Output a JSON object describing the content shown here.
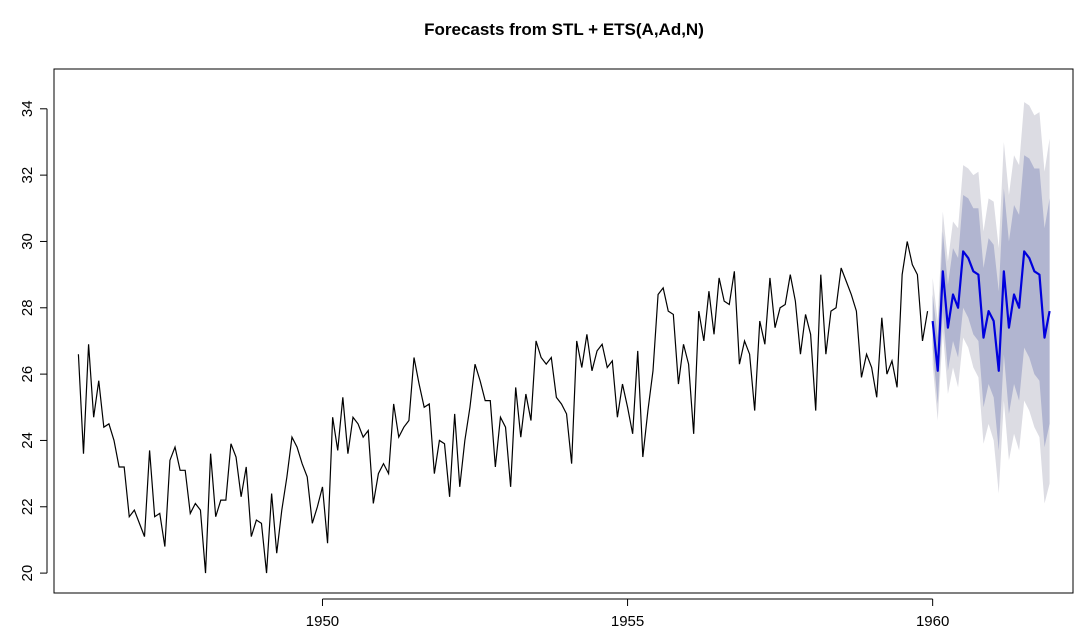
{
  "chart_data": {
    "type": "line",
    "title": "Forecasts from STL +  ETS(A,Ad,N)",
    "xlabel": "",
    "ylabel": "",
    "xlim": [
      1945.6,
      1962.3
    ],
    "ylim": [
      19.4,
      35.2
    ],
    "x_ticks": [
      1950,
      1955,
      1960
    ],
    "y_ticks": [
      20,
      22,
      24,
      26,
      28,
      30,
      32,
      34
    ],
    "grid": false,
    "colors": {
      "history": "#000000",
      "forecast": "#0000dd",
      "band80": "#b1b5d0",
      "band95": "#dcdce3"
    },
    "history": {
      "start": 1946,
      "frequency": 12,
      "values": [
        26.6,
        23.6,
        26.9,
        24.7,
        25.8,
        24.4,
        24.5,
        24.0,
        23.2,
        23.2,
        21.7,
        21.9,
        21.5,
        21.1,
        23.7,
        21.7,
        21.8,
        20.8,
        23.4,
        23.8,
        23.1,
        23.1,
        21.8,
        22.1,
        21.9,
        20.0,
        23.6,
        21.7,
        22.2,
        22.2,
        23.9,
        23.5,
        22.3,
        23.2,
        21.1,
        21.6,
        21.5,
        20.0,
        22.4,
        20.6,
        21.9,
        22.9,
        24.1,
        23.8,
        23.3,
        22.9,
        21.5,
        22.0,
        22.6,
        20.9,
        24.7,
        23.7,
        25.3,
        23.6,
        24.7,
        24.5,
        24.1,
        24.3,
        22.1,
        23.0,
        23.3,
        23.0,
        25.1,
        24.1,
        24.4,
        24.6,
        26.5,
        25.7,
        25.0,
        25.1,
        23.0,
        24.0,
        23.9,
        22.3,
        24.8,
        22.6,
        24.0,
        25.0,
        26.3,
        25.8,
        25.2,
        25.2,
        23.2,
        24.7,
        24.4,
        22.6,
        25.6,
        24.1,
        25.4,
        24.6,
        27.0,
        26.5,
        26.3,
        26.5,
        25.3,
        25.1,
        24.8,
        23.3,
        27.0,
        26.2,
        27.2,
        26.1,
        26.7,
        26.9,
        26.2,
        26.4,
        24.7,
        25.7,
        25.0,
        24.2,
        26.7,
        23.5,
        24.9,
        26.1,
        28.4,
        28.6,
        27.9,
        27.8,
        25.7,
        26.9,
        26.3,
        24.2,
        27.9,
        27.0,
        28.5,
        27.2,
        28.9,
        28.2,
        28.1,
        29.1,
        26.3,
        27.0,
        26.6,
        24.9,
        27.6,
        26.9,
        28.9,
        27.4,
        28.0,
        28.1,
        29.0,
        28.2,
        26.6,
        27.8,
        27.2,
        24.9,
        29.0,
        26.6,
        27.9,
        28.0,
        29.2,
        28.8,
        28.4,
        27.9,
        25.9,
        26.6,
        26.2,
        25.3,
        27.7,
        26.0,
        26.4,
        25.6,
        29.0,
        30.0,
        29.3,
        29.0,
        27.0,
        27.9
      ]
    },
    "forecast": {
      "start": 1960,
      "frequency": 12,
      "mean": [
        27.6,
        26.1,
        29.1,
        27.4,
        28.4,
        28.0,
        29.7,
        29.5,
        29.1,
        29.0,
        27.1,
        27.9,
        27.6,
        26.1,
        29.1,
        27.4,
        28.4,
        28.0,
        29.7,
        29.5,
        29.1,
        29.0,
        27.1,
        27.9
      ],
      "lo80": [
        26.8,
        25.1,
        27.9,
        26.1,
        27.0,
        26.5,
        28.0,
        27.7,
        27.2,
        27.0,
        25.0,
        25.7,
        25.3,
        23.7,
        26.6,
        24.8,
        25.7,
        25.2,
        26.8,
        26.5,
        26.0,
        25.8,
        23.8,
        24.5
      ],
      "hi80": [
        28.4,
        27.1,
        30.3,
        28.7,
        29.8,
        29.5,
        31.4,
        31.3,
        31.0,
        31.0,
        29.2,
        30.1,
        29.9,
        28.5,
        31.6,
        30.0,
        31.1,
        30.8,
        32.6,
        32.5,
        32.2,
        32.2,
        30.4,
        31.3
      ],
      "lo95": [
        26.3,
        24.6,
        27.3,
        25.4,
        26.2,
        25.6,
        27.1,
        26.8,
        26.2,
        25.9,
        23.9,
        24.5,
        24.0,
        22.4,
        25.2,
        23.4,
        24.2,
        23.7,
        25.2,
        24.9,
        24.4,
        24.1,
        22.1,
        22.7
      ],
      "hi95": [
        28.9,
        27.6,
        30.9,
        29.4,
        30.6,
        30.4,
        32.3,
        32.2,
        32.0,
        32.1,
        30.3,
        31.3,
        31.2,
        29.8,
        33.0,
        31.4,
        32.6,
        32.3,
        34.2,
        34.1,
        33.8,
        33.9,
        32.1,
        33.1
      ]
    }
  }
}
